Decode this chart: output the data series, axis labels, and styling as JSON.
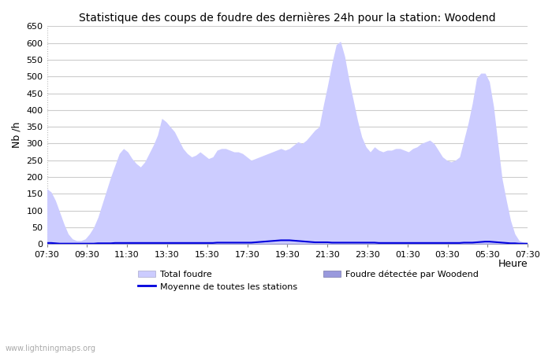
{
  "title": "Statistique des coups de foudre des dernières 24h pour la station: Woodend",
  "xlabel": "Heure",
  "ylabel": "Nb /h",
  "ylim": [
    0,
    650
  ],
  "yticks": [
    0,
    50,
    100,
    150,
    200,
    250,
    300,
    350,
    400,
    450,
    500,
    550,
    600,
    650
  ],
  "x_labels": [
    "07:30",
    "09:30",
    "11:30",
    "13:30",
    "15:30",
    "17:30",
    "19:30",
    "21:30",
    "23:30",
    "01:30",
    "03:30",
    "05:30",
    "07:30"
  ],
  "total_foudre_color": "#ccccff",
  "woodend_color": "#9999dd",
  "moyenne_color": "#0000dd",
  "background_color": "#ffffff",
  "watermark": "www.lightningmaps.org",
  "total_foudre": [
    165,
    155,
    130,
    95,
    60,
    30,
    15,
    10,
    10,
    15,
    30,
    50,
    80,
    120,
    160,
    200,
    235,
    270,
    285,
    275,
    255,
    240,
    230,
    245,
    270,
    295,
    325,
    375,
    365,
    350,
    335,
    310,
    285,
    270,
    260,
    265,
    275,
    265,
    255,
    260,
    280,
    285,
    285,
    280,
    275,
    275,
    270,
    260,
    250,
    255,
    260,
    265,
    270,
    275,
    280,
    285,
    280,
    285,
    295,
    305,
    300,
    310,
    325,
    340,
    350,
    415,
    475,
    540,
    595,
    605,
    560,
    490,
    430,
    370,
    320,
    290,
    275,
    290,
    280,
    275,
    280,
    280,
    285,
    285,
    280,
    275,
    285,
    290,
    300,
    305,
    310,
    300,
    280,
    260,
    250,
    245,
    250,
    260,
    310,
    360,
    420,
    495,
    510,
    510,
    485,
    410,
    300,
    195,
    130,
    70,
    30,
    10,
    5,
    3
  ],
  "woodend_foudre": [
    3,
    3,
    3,
    2,
    2,
    2,
    2,
    2,
    2,
    2,
    2,
    2,
    2,
    2,
    2,
    2,
    2,
    2,
    2,
    2,
    2,
    2,
    2,
    2,
    2,
    2,
    2,
    2,
    2,
    2,
    2,
    2,
    2,
    2,
    2,
    2,
    2,
    2,
    2,
    2,
    2,
    2,
    2,
    2,
    2,
    2,
    2,
    2,
    2,
    2,
    2,
    2,
    2,
    2,
    2,
    2,
    2,
    2,
    2,
    2,
    2,
    2,
    2,
    2,
    2,
    2,
    2,
    2,
    2,
    2,
    2,
    2,
    2,
    2,
    2,
    2,
    2,
    2,
    2,
    2,
    2,
    2,
    2,
    2,
    2,
    2,
    2,
    2,
    2,
    2,
    2,
    2,
    2,
    2,
    2,
    2,
    2,
    2,
    2,
    2,
    2,
    2,
    2,
    2,
    2,
    2,
    2,
    2,
    2,
    2,
    2,
    2,
    2,
    2
  ],
  "moyenne": [
    3,
    3,
    2,
    1,
    1,
    1,
    1,
    1,
    1,
    1,
    1,
    1,
    2,
    2,
    2,
    2,
    3,
    3,
    3,
    3,
    3,
    3,
    3,
    3,
    3,
    3,
    3,
    3,
    3,
    3,
    3,
    3,
    3,
    3,
    3,
    3,
    3,
    3,
    3,
    3,
    4,
    4,
    4,
    4,
    4,
    4,
    4,
    4,
    4,
    5,
    6,
    7,
    8,
    9,
    10,
    11,
    11,
    11,
    10,
    9,
    8,
    7,
    6,
    5,
    5,
    5,
    5,
    4,
    4,
    4,
    4,
    4,
    4,
    4,
    4,
    4,
    4,
    4,
    3,
    3,
    3,
    3,
    3,
    3,
    3,
    3,
    3,
    3,
    3,
    3,
    3,
    3,
    3,
    3,
    3,
    3,
    3,
    3,
    4,
    4,
    4,
    5,
    6,
    7,
    7,
    6,
    5,
    4,
    3,
    2,
    2,
    1,
    1,
    1
  ]
}
